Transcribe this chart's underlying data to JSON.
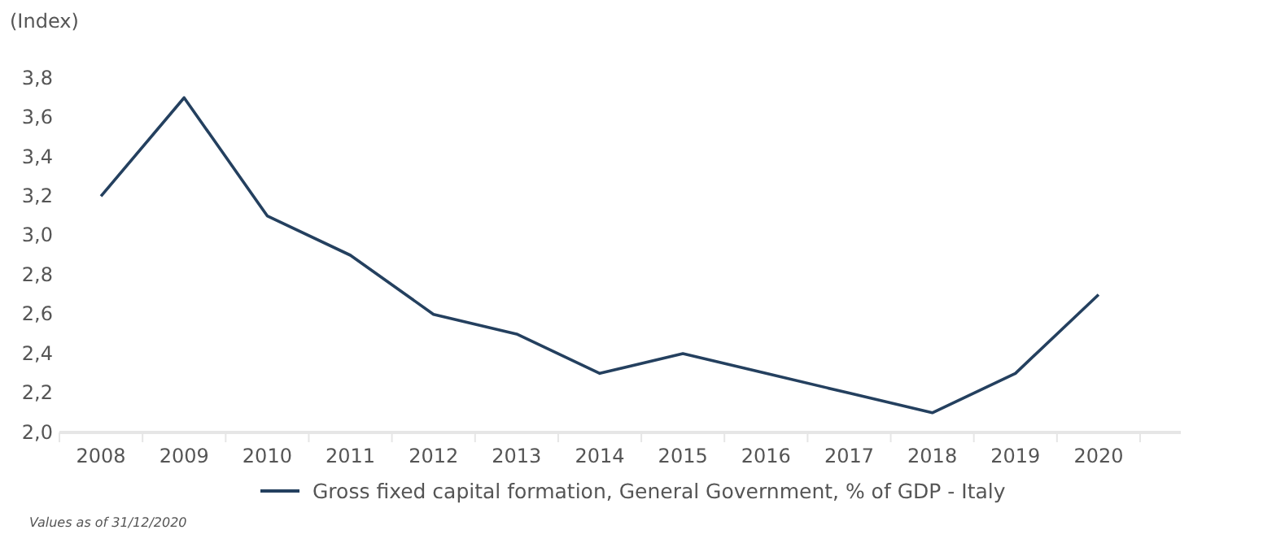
{
  "chart_data": {
    "type": "line",
    "ylabel": "(Index)",
    "categories": [
      "2008",
      "2009",
      "2010",
      "2011",
      "2012",
      "2013",
      "2014",
      "2015",
      "2016",
      "2017",
      "2018",
      "2019",
      "2020"
    ],
    "series": [
      {
        "name": "Gross fixed capital formation, General Government, % of GDP - Italy",
        "color": "#24405f",
        "values": [
          3.2,
          3.7,
          3.1,
          2.9,
          2.6,
          2.5,
          2.3,
          2.4,
          2.3,
          2.2,
          2.1,
          2.3,
          2.7
        ]
      }
    ],
    "ylim": [
      2.0,
      3.8
    ],
    "yticks": [
      {
        "value": 2.0,
        "label": "2,0"
      },
      {
        "value": 2.2,
        "label": "2,2"
      },
      {
        "value": 2.4,
        "label": "2,4"
      },
      {
        "value": 2.6,
        "label": "2,6"
      },
      {
        "value": 2.8,
        "label": "2,8"
      },
      {
        "value": 3.0,
        "label": "3,0"
      },
      {
        "value": 3.2,
        "label": "3,2"
      },
      {
        "value": 3.4,
        "label": "3,4"
      },
      {
        "value": 3.6,
        "label": "3,6"
      },
      {
        "value": 3.8,
        "label": "3,8"
      }
    ],
    "grid": false,
    "legend": "bottom",
    "line_style": "solid",
    "marker": "none",
    "annotations": [
      "Values as of 31/12/2020"
    ]
  }
}
